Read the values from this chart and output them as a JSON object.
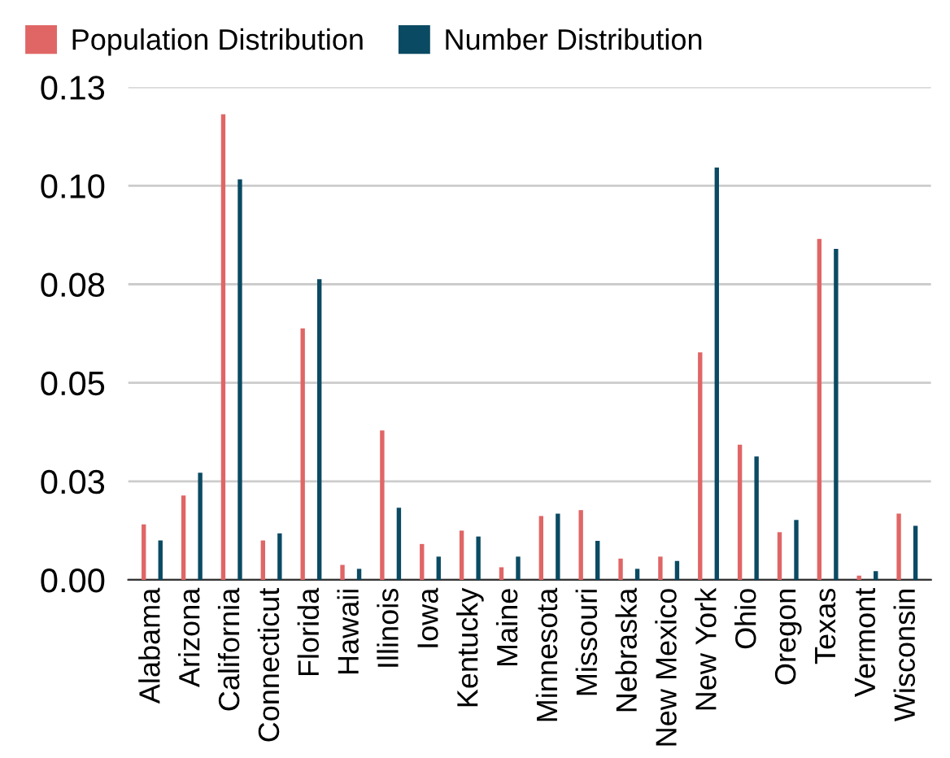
{
  "chart_data": {
    "type": "bar",
    "categories": [
      "Alabama",
      "Arizona",
      "California",
      "Connecticut",
      "Florida",
      "Hawaii",
      "Illinois",
      "Iowa",
      "Kentucky",
      "Maine",
      "Minnesota",
      "Missouri",
      "Nebraska",
      "New Mexico",
      "New York",
      "Ohio",
      "Oregon",
      "Texas",
      "Vermont",
      "Wisconsin"
    ],
    "series": [
      {
        "name": "Population Distribution",
        "color": "#e06666",
        "values": [
          0.0141,
          0.0214,
          0.1181,
          0.01,
          0.0638,
          0.0038,
          0.0379,
          0.0091,
          0.0125,
          0.0032,
          0.0162,
          0.0177,
          0.0054,
          0.0059,
          0.0577,
          0.0343,
          0.0121,
          0.0865,
          0.0011,
          0.0168
        ]
      },
      {
        "name": "Number Distribution",
        "color": "#0b4a63",
        "values": [
          0.01,
          0.0272,
          0.1016,
          0.0118,
          0.0763,
          0.0028,
          0.0183,
          0.0059,
          0.011,
          0.0059,
          0.0168,
          0.0099,
          0.0028,
          0.0048,
          0.1046,
          0.0313,
          0.0152,
          0.084,
          0.0022,
          0.0137
        ]
      }
    ],
    "ylim": [
      0,
      0.125
    ],
    "yticks": [
      {
        "value": 0,
        "label": "0.00"
      },
      {
        "value": 0.025,
        "label": "0.03"
      },
      {
        "value": 0.05,
        "label": "0.05"
      },
      {
        "value": 0.075,
        "label": "0.08"
      },
      {
        "value": 0.1,
        "label": "0.10"
      },
      {
        "value": 0.125,
        "label": "0.13"
      }
    ],
    "grid": "y",
    "legend": "top left"
  }
}
